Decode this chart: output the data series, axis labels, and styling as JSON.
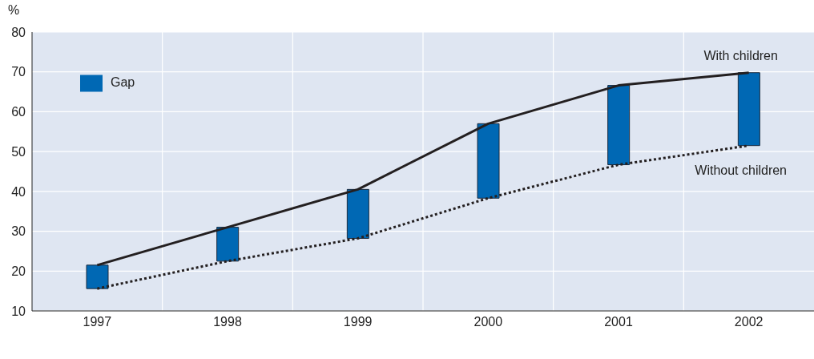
{
  "chart_data": {
    "type": "bar",
    "ylabel": "%",
    "categories": [
      "1997",
      "1998",
      "1999",
      "2000",
      "2001",
      "2002"
    ],
    "series": [
      {
        "name": "Gap",
        "color": "#0068b4",
        "base": [
          15.6,
          22.5,
          28.2,
          38.3,
          46.7,
          51.5
        ],
        "values": [
          5.9,
          8.5,
          12.3,
          18.7,
          19.9,
          18.3
        ]
      },
      {
        "name": "With children",
        "type": "line",
        "color": "#231f20",
        "line_style": "solid",
        "values": [
          21.5,
          31,
          40.5,
          57,
          66.6,
          69.8
        ]
      },
      {
        "name": "Without children",
        "type": "line",
        "color": "#231f20",
        "line_style": "dotted",
        "values": [
          15.6,
          22.5,
          28.2,
          38.3,
          46.7,
          51.5
        ]
      }
    ],
    "ylim": [
      10,
      80
    ],
    "yticks": [
      10,
      20,
      30,
      40,
      50,
      60,
      70,
      80
    ],
    "grid": true,
    "legend": "top left",
    "marker": "none"
  }
}
